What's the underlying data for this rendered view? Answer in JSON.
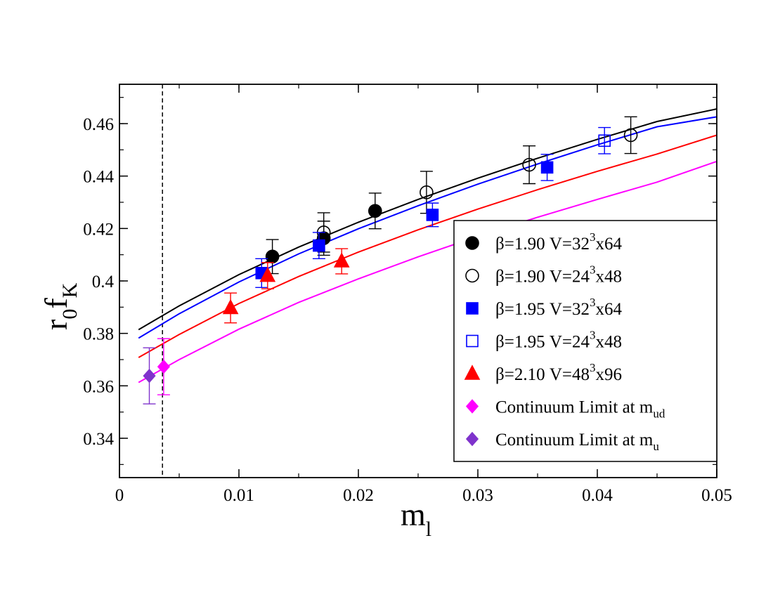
{
  "chart_data": {
    "type": "scatter",
    "title": "",
    "xlabel": {
      "main": "m",
      "sub": "l"
    },
    "ylabel": {
      "main": "r",
      "sub1": "0",
      "mid": "f",
      "sub2": "K"
    },
    "xlim": [
      0,
      0.05
    ],
    "ylim": [
      0.325,
      0.475
    ],
    "xticks": [
      0,
      0.01,
      0.02,
      0.03,
      0.04,
      0.05
    ],
    "xtick_labels": [
      "0",
      "0.01",
      "0.02",
      "0.03",
      "0.04",
      "0.05"
    ],
    "yticks": [
      0.34,
      0.36,
      0.38,
      0.4,
      0.42,
      0.44,
      0.46
    ],
    "ytick_labels": [
      "0.34",
      "0.36",
      "0.38",
      "0.4",
      "0.42",
      "0.44",
      "0.46"
    ],
    "vline_x": 0.0036,
    "curves": [
      {
        "name": "fit-beta-1.90",
        "color": "#000000",
        "x": [
          0.0016,
          0.005,
          0.01,
          0.015,
          0.02,
          0.025,
          0.03,
          0.035,
          0.04,
          0.045,
          0.05
        ],
        "y": [
          0.3814,
          0.3905,
          0.4024,
          0.4129,
          0.4224,
          0.4311,
          0.4392,
          0.4468,
          0.454,
          0.4608,
          0.4656
        ]
      },
      {
        "name": "fit-beta-1.95",
        "color": "#0000ff",
        "x": [
          0.0016,
          0.005,
          0.01,
          0.015,
          0.02,
          0.025,
          0.03,
          0.035,
          0.04,
          0.045,
          0.05
        ],
        "y": [
          0.3782,
          0.3875,
          0.3996,
          0.4103,
          0.4199,
          0.4287,
          0.4369,
          0.4446,
          0.4519,
          0.4588,
          0.4626
        ]
      },
      {
        "name": "fit-beta-2.10",
        "color": "#ff0000",
        "x": [
          0.0016,
          0.005,
          0.01,
          0.015,
          0.02,
          0.025,
          0.03,
          0.035,
          0.04,
          0.045,
          0.05
        ],
        "y": [
          0.3708,
          0.3796,
          0.3914,
          0.4017,
          0.411,
          0.4195,
          0.4274,
          0.4348,
          0.4418,
          0.4484,
          0.4556
        ]
      },
      {
        "name": "fit-continuum",
        "color": "#ff00ff",
        "x": [
          0.0016,
          0.005,
          0.01,
          0.015,
          0.02,
          0.025,
          0.03,
          0.035,
          0.04,
          0.045,
          0.05
        ],
        "y": [
          0.3613,
          0.37,
          0.3816,
          0.3918,
          0.4008,
          0.4092,
          0.417,
          0.4243,
          0.4311,
          0.4377,
          0.4456
        ]
      }
    ],
    "series": [
      {
        "name": "β=1.90 V=32³x64",
        "label": {
          "pre": "β=1.90 V=32",
          "sup": "3",
          "post": "x64"
        },
        "marker": "circle",
        "filled": true,
        "color": "#000000",
        "points": [
          {
            "x": 0.0128,
            "y": 0.4093,
            "err": 0.0065
          },
          {
            "x": 0.0171,
            "y": 0.4163,
            "err": 0.0065
          },
          {
            "x": 0.0214,
            "y": 0.4267,
            "err": 0.0068
          }
        ]
      },
      {
        "name": "β=1.90 V=24³x48",
        "label": {
          "pre": "β=1.90 V=24",
          "sup": "3",
          "post": "x48"
        },
        "marker": "circle",
        "filled": false,
        "color": "#000000",
        "points": [
          {
            "x": 0.0171,
            "y": 0.4185,
            "err": 0.0075
          },
          {
            "x": 0.0257,
            "y": 0.4338,
            "err": 0.008
          },
          {
            "x": 0.0343,
            "y": 0.4443,
            "err": 0.0072
          },
          {
            "x": 0.0428,
            "y": 0.4556,
            "err": 0.007
          }
        ]
      },
      {
        "name": "β=1.95 V=32³x64",
        "label": {
          "pre": "β=1.95 V=32",
          "sup": "3",
          "post": "x64"
        },
        "marker": "square",
        "filled": true,
        "color": "#0000ff",
        "points": [
          {
            "x": 0.0119,
            "y": 0.403,
            "err": 0.0055
          },
          {
            "x": 0.0167,
            "y": 0.4135,
            "err": 0.005
          },
          {
            "x": 0.0262,
            "y": 0.4252,
            "err": 0.0045
          },
          {
            "x": 0.0358,
            "y": 0.4433,
            "err": 0.005
          }
        ]
      },
      {
        "name": "β=1.95 V=24³x48",
        "label": {
          "pre": "β=1.95 V=24",
          "sup": "3",
          "post": "x48"
        },
        "marker": "square",
        "filled": false,
        "color": "#0000ff",
        "points": [
          {
            "x": 0.0406,
            "y": 0.4535,
            "err": 0.005
          }
        ]
      },
      {
        "name": "β=2.10 V=48³x96",
        "label": {
          "pre": "β=2.10 V=48",
          "sup": "3",
          "post": "x96"
        },
        "marker": "triangle",
        "filled": true,
        "color": "#ff0000",
        "points": [
          {
            "x": 0.0093,
            "y": 0.3897,
            "err": 0.0057
          },
          {
            "x": 0.0124,
            "y": 0.402,
            "err": 0.005
          },
          {
            "x": 0.0186,
            "y": 0.4075,
            "err": 0.0048
          }
        ]
      },
      {
        "name": "Continuum Limit at m_ud",
        "label": {
          "pre": "Continuum Limit at m",
          "sub": "ud"
        },
        "marker": "diamond",
        "filled": true,
        "color": "#ff00ff",
        "points": [
          {
            "x": 0.0037,
            "y": 0.3673,
            "err": 0.0107
          }
        ]
      },
      {
        "name": "Continuum Limit at m_u",
        "label": {
          "pre": "Continuum Limit at m",
          "sub": "u"
        },
        "marker": "diamond",
        "filled": true,
        "color": "#7f33cc",
        "points": [
          {
            "x": 0.0025,
            "y": 0.3638,
            "err": 0.0107
          }
        ]
      }
    ],
    "legend_position": "right"
  }
}
